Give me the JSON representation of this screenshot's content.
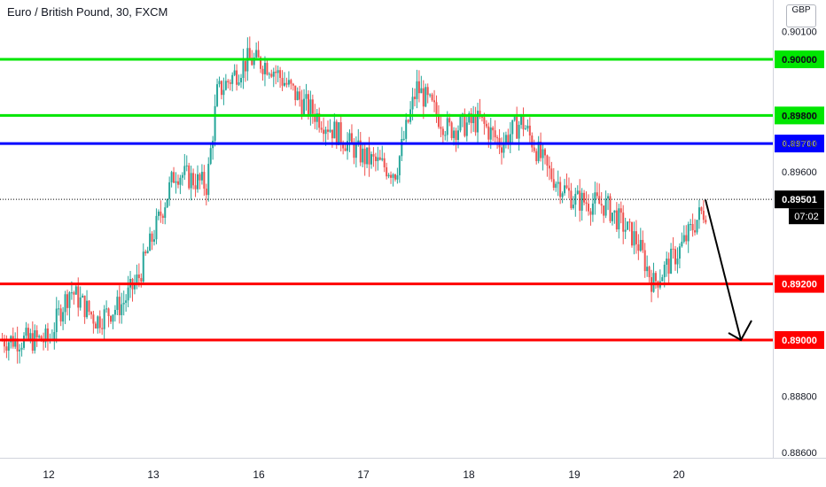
{
  "header": {
    "title": "Euro / British Pound, 30, FXCM",
    "currency_badge": "GBP"
  },
  "colors": {
    "up_candle": "#26a69a",
    "down_candle": "#ef5350",
    "resistance": "#00e600",
    "pivot": "#0000ff",
    "support": "#ff0000",
    "current_label_bg": "#000000",
    "arrow": "#000000"
  },
  "chart_data": {
    "type": "candlestick",
    "title": "Euro / British Pound, 30, FXCM",
    "ylim": [
      0.8859,
      0.9072
    ],
    "y_ticks": [
      "0.88600",
      "0.88800",
      "0.89600",
      "0.89700",
      "0.89800",
      "0.90000",
      "0.90100"
    ],
    "x_ticks": [
      "12",
      "13",
      "16",
      "17",
      "18",
      "19",
      "20"
    ],
    "grid": false,
    "price_series_path": [
      {
        "x": 0,
        "close": 0.89
      },
      {
        "x": 0.1,
        "close": 0.891
      },
      {
        "x": 0.2,
        "close": 0.8918
      },
      {
        "x": 0.45,
        "close": 0.8907
      },
      {
        "x": 0.7,
        "close": 0.8913
      },
      {
        "x": 0.85,
        "close": 0.8922
      },
      {
        "x": 1.2,
        "close": 0.896
      },
      {
        "x": 1.5,
        "close": 0.8955
      },
      {
        "x": 1.6,
        "close": 0.8988
      },
      {
        "x": 1.9,
        "close": 0.9
      },
      {
        "x": 2.1,
        "close": 0.8998
      },
      {
        "x": 2.4,
        "close": 0.8985
      },
      {
        "x": 2.7,
        "close": 0.8975
      },
      {
        "x": 3.0,
        "close": 0.8965
      },
      {
        "x": 3.3,
        "close": 0.896
      },
      {
        "x": 3.5,
        "close": 0.899
      },
      {
        "x": 3.8,
        "close": 0.8975
      },
      {
        "x": 4.1,
        "close": 0.8978
      },
      {
        "x": 4.3,
        "close": 0.897
      },
      {
        "x": 4.5,
        "close": 0.8978
      },
      {
        "x": 4.75,
        "close": 0.896
      },
      {
        "x": 5.0,
        "close": 0.895
      },
      {
        "x": 5.3,
        "close": 0.8948
      },
      {
        "x": 5.6,
        "close": 0.8935
      },
      {
        "x": 5.75,
        "close": 0.892
      },
      {
        "x": 6.0,
        "close": 0.8932
      },
      {
        "x": 6.2,
        "close": 0.8945
      },
      {
        "x": 6.5,
        "close": 0.8952
      },
      {
        "x": 6.6,
        "close": 0.893
      },
      {
        "x": 6.8,
        "close": 0.895
      },
      {
        "x": 7.0,
        "close": 0.8955
      },
      {
        "x": 7.2,
        "close": 0.895
      }
    ],
    "horizontal_levels": [
      {
        "label": "0.90000",
        "value": 0.9,
        "kind": "resistance"
      },
      {
        "label": "0.89800",
        "value": 0.898,
        "kind": "resistance"
      },
      {
        "label": "0.89700",
        "value": 0.897,
        "kind": "pivot"
      },
      {
        "label": "0.89200",
        "value": 0.892,
        "kind": "support"
      },
      {
        "label": "0.89000",
        "value": 0.89,
        "kind": "support"
      }
    ],
    "current_price": {
      "label": "0.89501",
      "value": 0.89501,
      "countdown": "07:02"
    },
    "projection_arrow": {
      "from": {
        "x": 7.2,
        "y": 0.895
      },
      "to": {
        "x": 7.55,
        "y": 0.89
      }
    }
  }
}
